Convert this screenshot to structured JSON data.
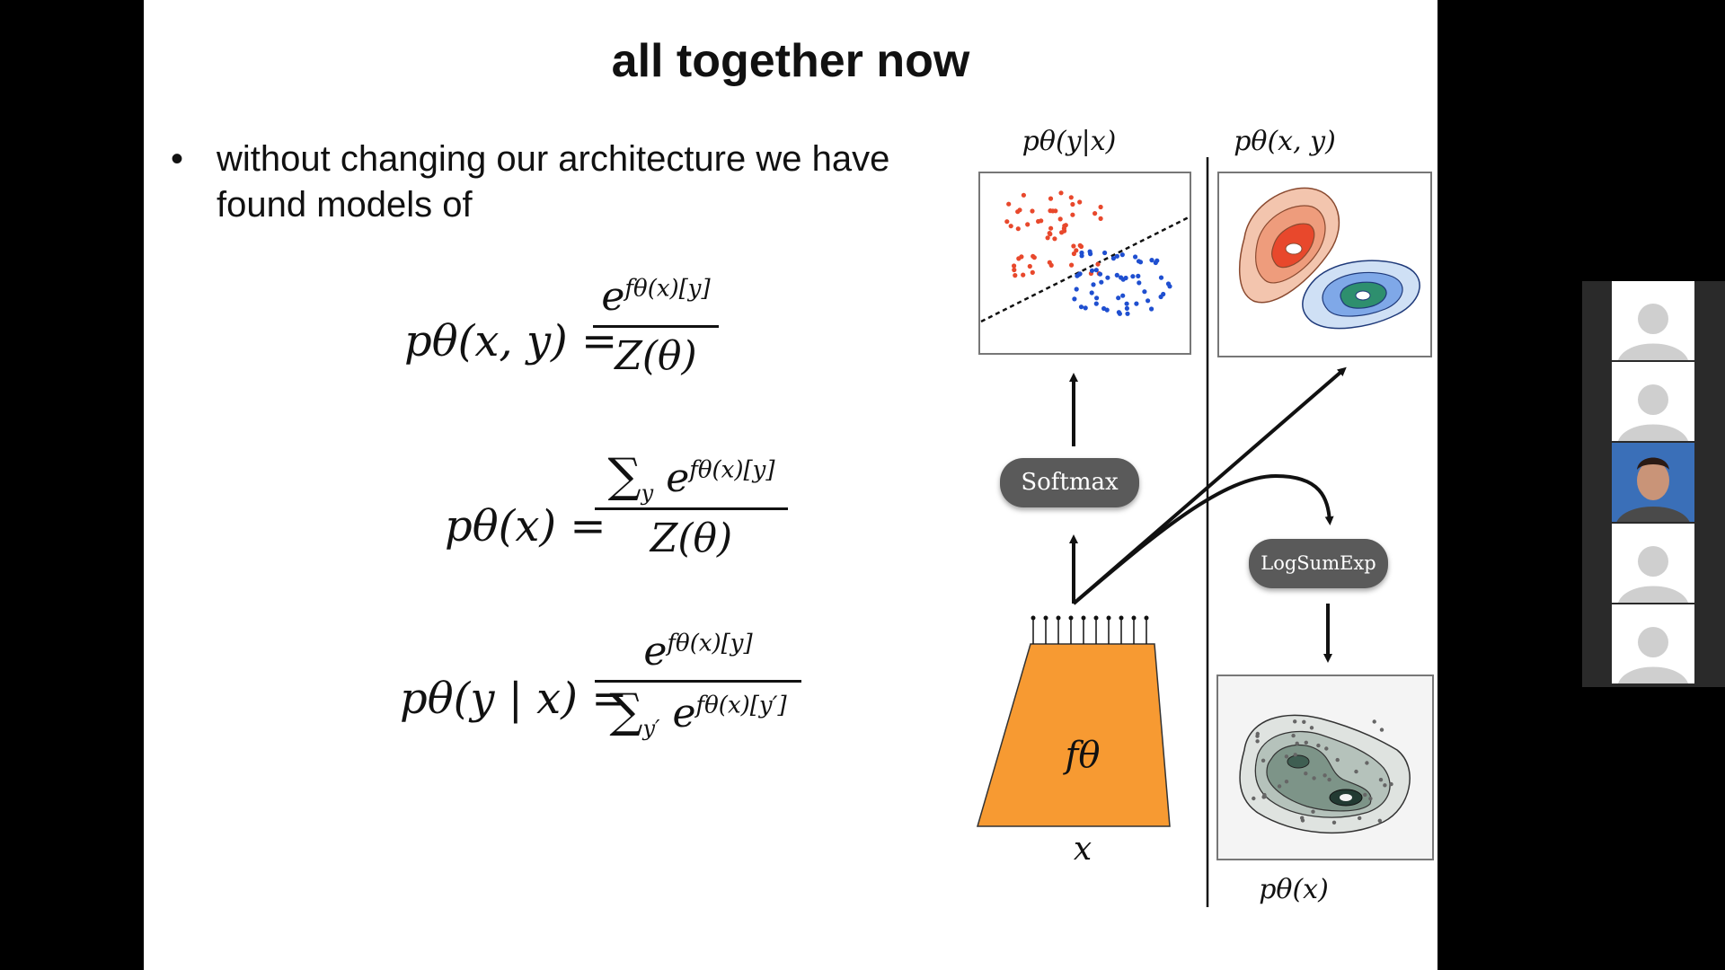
{
  "slide": {
    "title": "all together now",
    "bullet_symbol": "•",
    "bullet_text": "without changing our architecture we have found models of"
  },
  "equations": [
    {
      "lhs": "pθ(x, y) =",
      "numerator_base": "e",
      "numerator_exp": "fθ(x)[y]",
      "denominator": "Z(θ)"
    },
    {
      "lhs": "pθ(x) =",
      "numerator_sum": "∑",
      "numerator_sum_index": "y",
      "numerator_base": "e",
      "numerator_exp": "fθ(x)[y]",
      "denominator": "Z(θ)"
    },
    {
      "lhs": "pθ(y | x) =",
      "numerator_base": "e",
      "numerator_exp": "fθ(x)[y]",
      "denominator_sum": "∑",
      "denominator_sum_index": "y′",
      "denominator_base": "e",
      "denominator_exp": "fθ(x)[y′]"
    }
  ],
  "diagram": {
    "label_p_y_given_x": "pθ(y|x)",
    "label_p_xy": "pθ(x, y)",
    "label_p_x": "pθ(x)",
    "softmax": "Softmax",
    "logsumexp": "LogSumExp",
    "network": "fθ",
    "input": "x",
    "network_color": "#F79A32",
    "red_color": "#E8482C",
    "blue_color": "#1F4FD0",
    "green_color": "#2E8F6E",
    "gray_color": "#5a5a5a"
  },
  "participants": [
    {
      "type": "avatar-placeholder"
    },
    {
      "type": "avatar-placeholder"
    },
    {
      "type": "video"
    },
    {
      "type": "avatar-placeholder"
    },
    {
      "type": "avatar-placeholder"
    }
  ]
}
